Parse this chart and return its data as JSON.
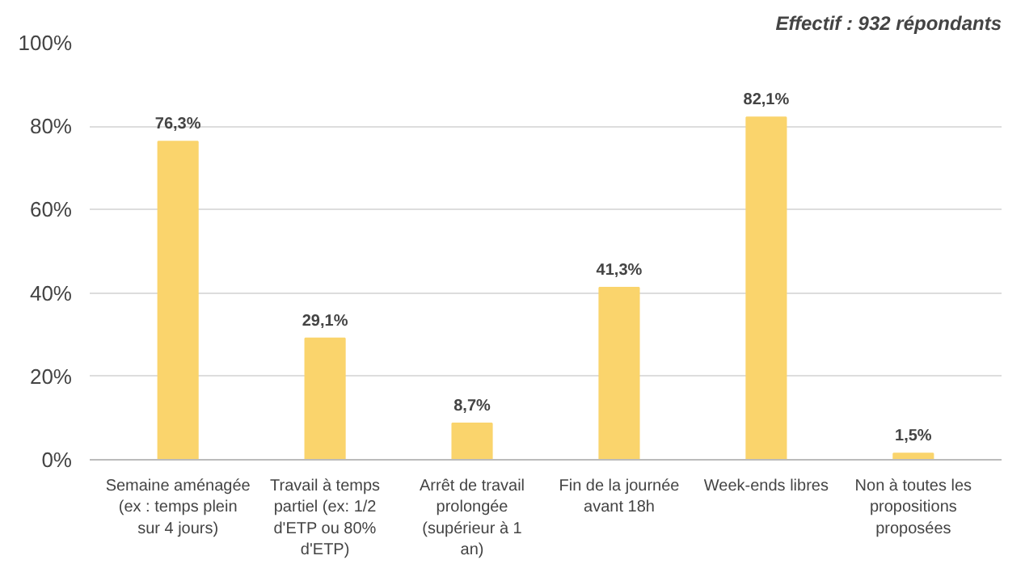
{
  "chart_data": {
    "type": "bar",
    "categories": [
      "Semaine aménagée (ex : temps plein sur 4 jours)",
      "Travail à temps partiel (ex: 1/2 d'ETP ou 80% d'ETP)",
      "Arrêt de travail prolongée (supérieur à 1 an)",
      "Fin de la journée avant 18h",
      "Week-ends libres",
      "Non à toutes les propositions proposées"
    ],
    "values": [
      76.3,
      29.1,
      8.7,
      41.3,
      82.1,
      1.5
    ],
    "value_labels": [
      "76,3%",
      "29,1%",
      "8,7%",
      "41,3%",
      "82,1%",
      "1,5%"
    ],
    "color": "#fad46c",
    "ylim": [
      0,
      100
    ],
    "yticks": [
      {
        "value": 0,
        "label": "0%"
      },
      {
        "value": 20,
        "label": "20%"
      },
      {
        "value": 40,
        "label": "40%"
      },
      {
        "value": 60,
        "label": "60%"
      },
      {
        "value": 80,
        "label": "80%"
      },
      {
        "value": 100,
        "label": "100%"
      }
    ],
    "grid": "y",
    "annotations": [
      "Effectif : 932 répondants"
    ]
  }
}
